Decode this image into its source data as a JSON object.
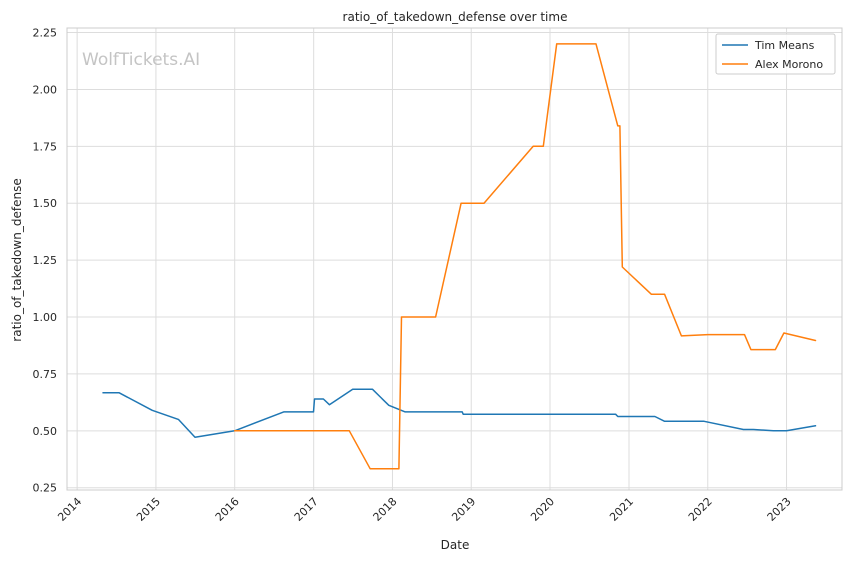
{
  "chart_data": {
    "type": "line",
    "title": "ratio_of_takedown_defense over time",
    "xlabel": "Date",
    "ylabel": "ratio_of_takedown_defense",
    "watermark": "WolfTickets.AI",
    "x_range": [
      "2013-11-15",
      "2023-09-15"
    ],
    "y_range": [
      0.24,
      2.27
    ],
    "x_ticks": [
      "2014-01-01",
      "2015-01-01",
      "2016-01-01",
      "2017-01-01",
      "2018-01-01",
      "2019-01-01",
      "2020-01-01",
      "2021-01-01",
      "2022-01-01",
      "2023-01-01"
    ],
    "x_tick_labels": [
      "2014",
      "2015",
      "2016",
      "2017",
      "2018",
      "2019",
      "2020",
      "2021",
      "2022",
      "2023"
    ],
    "y_ticks": [
      0.25,
      0.5,
      0.75,
      1.0,
      1.25,
      1.5,
      1.75,
      2.0,
      2.25
    ],
    "y_tick_labels": [
      "0.25",
      "0.50",
      "0.75",
      "1.00",
      "1.25",
      "1.50",
      "1.75",
      "2.00",
      "2.25"
    ],
    "grid": true,
    "legend_position": "top-right",
    "series": [
      {
        "name": "Tim Means",
        "color": "#1f77b4",
        "points": [
          [
            "2014-05-01",
            0.667
          ],
          [
            "2014-07-15",
            0.667
          ],
          [
            "2014-12-15",
            0.59
          ],
          [
            "2015-04-15",
            0.55
          ],
          [
            "2015-07-01",
            0.472
          ],
          [
            "2016-01-01",
            0.5
          ],
          [
            "2016-08-15",
            0.583
          ],
          [
            "2016-12-31",
            0.583
          ],
          [
            "2017-01-05",
            0.64
          ],
          [
            "2017-02-15",
            0.64
          ],
          [
            "2017-03-15",
            0.615
          ],
          [
            "2017-07-01",
            0.683
          ],
          [
            "2017-09-30",
            0.683
          ],
          [
            "2017-12-15",
            0.612
          ],
          [
            "2018-03-01",
            0.583
          ],
          [
            "2018-11-20",
            0.583
          ],
          [
            "2018-11-25",
            0.573
          ],
          [
            "2020-10-31",
            0.573
          ],
          [
            "2020-11-10",
            0.563
          ],
          [
            "2021-05-01",
            0.563
          ],
          [
            "2021-06-15",
            0.542
          ],
          [
            "2021-12-15",
            0.542
          ],
          [
            "2022-06-15",
            0.506
          ],
          [
            "2022-08-01",
            0.506
          ],
          [
            "2022-11-01",
            0.5
          ],
          [
            "2023-01-01",
            0.5
          ],
          [
            "2023-05-15",
            0.522
          ]
        ]
      },
      {
        "name": "Alex Morono",
        "color": "#ff7f0e",
        "points": [
          [
            "2016-01-01",
            0.5
          ],
          [
            "2017-06-15",
            0.5
          ],
          [
            "2017-09-20",
            0.333
          ],
          [
            "2018-01-31",
            0.333
          ],
          [
            "2018-02-12",
            1.0
          ],
          [
            "2018-07-20",
            1.0
          ],
          [
            "2018-11-15",
            1.5
          ],
          [
            "2019-03-01",
            1.5
          ],
          [
            "2019-10-15",
            1.75
          ],
          [
            "2019-12-01",
            1.75
          ],
          [
            "2020-02-01",
            2.2
          ],
          [
            "2020-08-01",
            2.2
          ],
          [
            "2020-11-10",
            1.84
          ],
          [
            "2020-11-20",
            1.84
          ],
          [
            "2020-12-01",
            1.22
          ],
          [
            "2021-04-15",
            1.1
          ],
          [
            "2021-06-15",
            1.1
          ],
          [
            "2021-09-01",
            0.917
          ],
          [
            "2022-01-01",
            0.923
          ],
          [
            "2022-06-20",
            0.923
          ],
          [
            "2022-07-20",
            0.857
          ],
          [
            "2022-09-30",
            0.857
          ],
          [
            "2022-11-10",
            0.857
          ],
          [
            "2022-12-20",
            0.93
          ],
          [
            "2023-05-15",
            0.897
          ]
        ]
      }
    ]
  }
}
